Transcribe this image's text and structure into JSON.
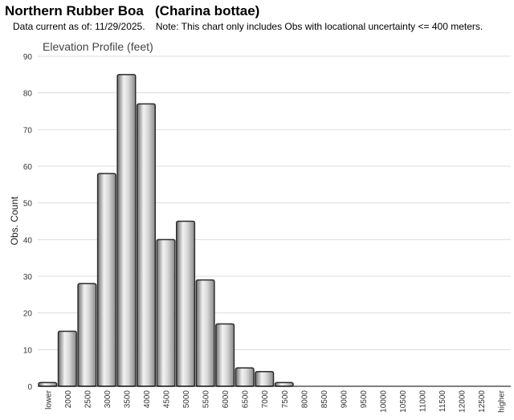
{
  "header": {
    "species": "Northern Rubber Boa   (Charina bottae)",
    "note": "Data current as of: 11/29/2025.    Note: This chart only includes Obs with locational uncertainty <= 400 meters."
  },
  "chart_data": {
    "type": "bar",
    "title": "Elevation Profile (feet)",
    "xlabel": "",
    "ylabel": "Obs. Count",
    "ylim": [
      0,
      90
    ],
    "yticks": [
      0,
      10,
      20,
      30,
      40,
      50,
      60,
      70,
      80,
      90
    ],
    "grid": true,
    "categories": [
      "lower",
      "2000",
      "2500",
      "3000",
      "3500",
      "4000",
      "4500",
      "5000",
      "5500",
      "6000",
      "6500",
      "7000",
      "7500",
      "8000",
      "8500",
      "9000",
      "9500",
      "10000",
      "10500",
      "11000",
      "11500",
      "12000",
      "12500",
      "higher"
    ],
    "values": [
      1,
      15,
      28,
      58,
      85,
      77,
      40,
      45,
      29,
      17,
      5,
      4,
      1,
      0,
      0,
      0,
      0,
      0,
      0,
      0,
      0,
      0,
      0,
      0
    ],
    "colors": {
      "bar_stroke": "#2a2a2a",
      "grid": "#dddddd",
      "axis": "#000000"
    }
  }
}
